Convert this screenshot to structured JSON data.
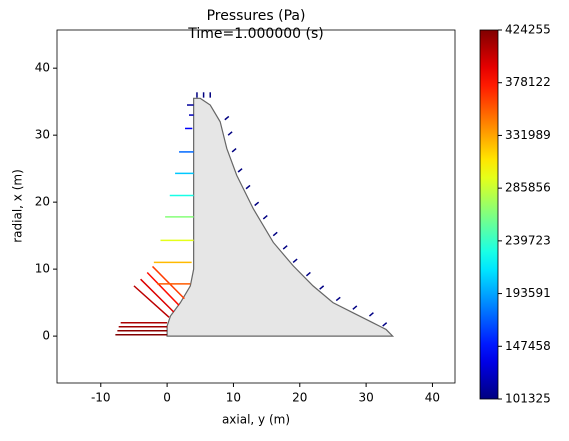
{
  "chart_data": {
    "type": "mesh-loads",
    "title": "Pressures  (Pa)",
    "subtitle": "Time=1.000000 (s)",
    "x_label": "axial, y (m)",
    "y_label": "radial, x (m)",
    "xlim": [
      -16.6,
      43.4
    ],
    "ylim": [
      -7.0,
      45.7
    ],
    "xticks": [
      -10,
      0,
      10,
      20,
      30,
      40
    ],
    "yticks": [
      0,
      10,
      20,
      30,
      40
    ],
    "domain": {
      "color": "#e6e6e6",
      "edge_color": "#666666",
      "y": [
        0,
        34,
        33,
        31,
        28,
        25,
        22,
        19,
        16,
        13,
        10.5,
        9,
        8,
        6.5,
        5,
        4,
        4,
        4,
        4,
        4,
        4,
        3.5,
        2,
        0.5,
        0
      ],
      "x": [
        0,
        0,
        1,
        2,
        3.5,
        5,
        7.5,
        10.5,
        14,
        19,
        24,
        28,
        32,
        34.5,
        35.5,
        35.5,
        33,
        28,
        24,
        15,
        10,
        7.5,
        5,
        3,
        1.5
      ]
    },
    "colormap": "jet",
    "clim": [
      101325,
      424255
    ],
    "colorbar_ticks": [
      424255,
      378122,
      331989,
      285856,
      239723,
      193591,
      147458,
      101325
    ],
    "loads": {
      "y_start": [
        -7.8,
        -7.5,
        -7.3,
        -7,
        -5,
        -4,
        -3,
        -2.2,
        -1.5,
        -2,
        -1,
        -0.3,
        0.4,
        1.2,
        1.8,
        2.7,
        3.3,
        3,
        4.5,
        5.5,
        6.5,
        8.7,
        9.2,
        9.8,
        10.7,
        11.9,
        13.2,
        14.5,
        16,
        17.5,
        19,
        21,
        23,
        25.5,
        28,
        30.5,
        32.5
      ],
      "x_start": [
        0.2,
        0.8,
        1.4,
        2,
        7.5,
        8.5,
        9.5,
        10.4,
        7.8,
        11,
        14.3,
        17.8,
        21,
        24.3,
        27.5,
        31,
        33,
        34.5,
        35.6,
        35.6,
        35.6,
        32.3,
        30,
        27.5,
        24.5,
        22,
        19.5,
        17.5,
        15,
        13,
        11,
        9,
        7,
        5.3,
        4,
        3,
        1.5
      ],
      "y_end": [
        0,
        0,
        0,
        0,
        0.3,
        1,
        1.8,
        2.6,
        3.5,
        3.7,
        4,
        4,
        4,
        4,
        4,
        3.8,
        4,
        4,
        4.5,
        5.5,
        6.5,
        9.3,
        9.8,
        10.4,
        11.3,
        12.5,
        13.8,
        15.1,
        16.6,
        18.1,
        19.6,
        21.6,
        23.6,
        26.1,
        28.6,
        31.1,
        33.1
      ],
      "x_end": [
        0.2,
        0.8,
        1.4,
        2,
        2.8,
        3.6,
        4.6,
        5.6,
        7.8,
        11,
        14.3,
        17.8,
        21,
        24.3,
        27.5,
        31,
        33,
        34.5,
        36.4,
        36.4,
        36.4,
        32.8,
        30.5,
        28,
        25,
        22.5,
        20,
        18,
        15.5,
        13.5,
        11.5,
        9.5,
        7.5,
        5.8,
        4.5,
        3.5,
        2
      ],
      "pressure": [
        424000,
        420000,
        415000,
        410000,
        405000,
        395000,
        380000,
        365000,
        355000,
        325000,
        295000,
        265000,
        230000,
        205000,
        175000,
        140000,
        120000,
        110000,
        101500,
        101500,
        101500,
        101600,
        101700,
        101800,
        101900,
        102000,
        102100,
        102200,
        102300,
        102400,
        102500,
        102600,
        102700,
        102800,
        102900,
        103000,
        103100
      ]
    }
  }
}
